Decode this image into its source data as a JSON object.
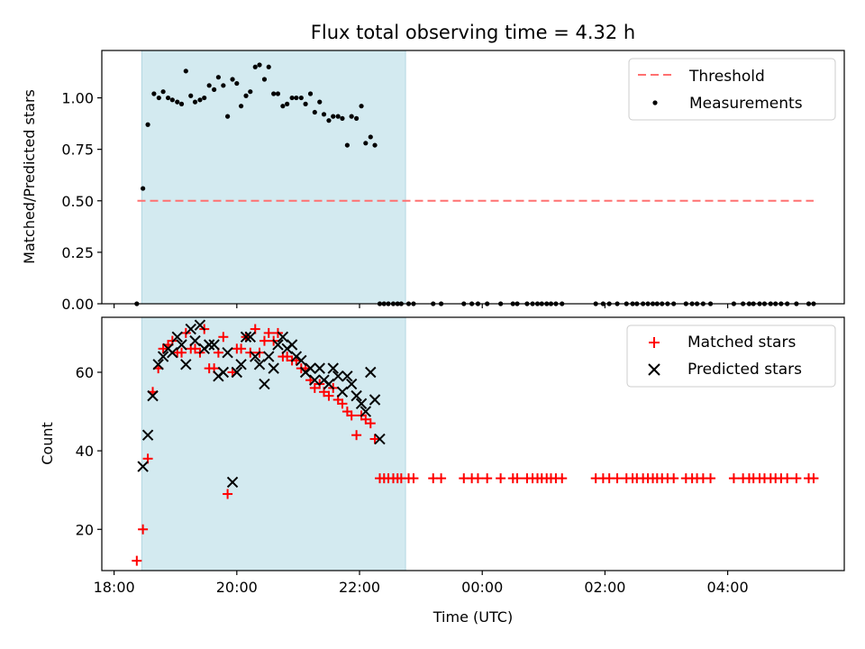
{
  "chart_data": [
    {
      "panel": "top",
      "type": "scatter",
      "title": "Flux total observing time = 4.32 h",
      "xlabel": "",
      "ylabel": "Matched/Predicted stars",
      "x_unit": "hours since 18:00 UTC",
      "xlim": [
        -0.2,
        11.9
      ],
      "ylim": [
        0,
        1.23
      ],
      "yticks": [
        0.0,
        0.25,
        0.5,
        0.75,
        1.0
      ],
      "ytick_labels": [
        "0.00",
        "0.25",
        "0.50",
        "0.75",
        "1.00"
      ],
      "shaded_interval": {
        "x_start": 0.45,
        "x_end": 4.75,
        "color": "#d3eaf0"
      },
      "threshold": {
        "name": "Threshold",
        "value": 0.5,
        "x_start": 0.38,
        "x_end": 11.4,
        "color": "#ff7070"
      },
      "legend": {
        "position": "top-right",
        "entries": [
          "Threshold",
          "Measurements"
        ]
      },
      "series": [
        {
          "name": "Measurements",
          "color": "#000000",
          "x": [
            0.37,
            0.47,
            0.55,
            0.65,
            0.73,
            0.8,
            0.88,
            0.95,
            1.03,
            1.1,
            1.17,
            1.25,
            1.32,
            1.4,
            1.47,
            1.55,
            1.63,
            1.7,
            1.78,
            1.85,
            1.93,
            2.0,
            2.07,
            2.15,
            2.22,
            2.3,
            2.37,
            2.45,
            2.52,
            2.6,
            2.67,
            2.75,
            2.82,
            2.9,
            2.97,
            3.05,
            3.12,
            3.2,
            3.27,
            3.35,
            3.42,
            3.5,
            3.57,
            3.65,
            3.72,
            3.8,
            3.87,
            3.95,
            4.03,
            4.1,
            4.18,
            4.25,
            4.33,
            4.4,
            4.47,
            4.55,
            4.62,
            4.68,
            4.8,
            4.88,
            5.2,
            5.33,
            5.7,
            5.83,
            5.93,
            6.08,
            6.3,
            6.5,
            6.57,
            6.73,
            6.82,
            6.9,
            6.97,
            7.05,
            7.12,
            7.2,
            7.3,
            7.85,
            7.97,
            8.07,
            8.2,
            8.35,
            8.45,
            8.52,
            8.62,
            8.7,
            8.78,
            8.85,
            8.93,
            9.02,
            9.12,
            9.32,
            9.42,
            9.5,
            9.6,
            9.72,
            10.1,
            10.25,
            10.35,
            10.42,
            10.52,
            10.6,
            10.7,
            10.78,
            10.87,
            10.97,
            11.12,
            11.32,
            11.4
          ],
          "y": [
            0.0,
            0.56,
            0.87,
            1.02,
            1.0,
            1.03,
            1.0,
            0.99,
            0.98,
            0.97,
            1.13,
            1.01,
            0.98,
            0.99,
            1.0,
            1.06,
            1.04,
            1.1,
            1.06,
            0.91,
            1.09,
            1.07,
            0.96,
            1.01,
            1.03,
            1.15,
            1.16,
            1.09,
            1.15,
            1.02,
            1.02,
            0.96,
            0.97,
            1.0,
            1.0,
            1.0,
            0.97,
            1.02,
            0.93,
            0.98,
            0.92,
            0.89,
            0.91,
            0.91,
            0.9,
            0.77,
            0.91,
            0.9,
            0.96,
            0.78,
            0.81,
            0.77,
            0.0,
            0.0,
            0.0,
            0.0,
            0.0,
            0.0,
            0.0,
            0.0,
            0.0,
            0.0,
            0.0,
            0.0,
            0.0,
            0.0,
            0.0,
            0.0,
            0.0,
            0.0,
            0.0,
            0.0,
            0.0,
            0.0,
            0.0,
            0.0,
            0.0,
            0.0,
            0.0,
            0.0,
            0.0,
            0.0,
            0.0,
            0.0,
            0.0,
            0.0,
            0.0,
            0.0,
            0.0,
            0.0,
            0.0,
            0.0,
            0.0,
            0.0,
            0.0,
            0.0,
            0.0,
            0.0,
            0.0,
            0.0,
            0.0,
            0.0,
            0.0,
            0.0,
            0.0,
            0.0,
            0.0,
            0.0,
            0.0
          ]
        }
      ]
    },
    {
      "panel": "bottom",
      "type": "scatter",
      "title": "",
      "xlabel": "Time (UTC)",
      "ylabel": "Count",
      "x_unit": "hours since 18:00 UTC",
      "xlim": [
        -0.2,
        11.9
      ],
      "ylim": [
        9.5,
        74
      ],
      "yticks": [
        20,
        40,
        60
      ],
      "ytick_labels": [
        "20",
        "40",
        "60"
      ],
      "xticks": [
        0,
        2,
        4,
        6,
        8,
        10
      ],
      "xtick_labels": [
        "18:00",
        "20:00",
        "22:00",
        "00:00",
        "02:00",
        "04:00"
      ],
      "shaded_interval": {
        "x_start": 0.45,
        "x_end": 4.75,
        "color": "#d3eaf0"
      },
      "legend": {
        "position": "top-right",
        "entries": [
          "Matched stars",
          "Predicted stars"
        ]
      },
      "series": [
        {
          "name": "Matched stars",
          "marker": "plus",
          "color": "#ff0000",
          "x": [
            0.37,
            0.47,
            0.55,
            0.63,
            0.72,
            0.8,
            0.88,
            0.95,
            1.03,
            1.1,
            1.17,
            1.25,
            1.32,
            1.4,
            1.47,
            1.55,
            1.63,
            1.7,
            1.78,
            1.85,
            1.93,
            2.0,
            2.07,
            2.15,
            2.22,
            2.3,
            2.37,
            2.45,
            2.52,
            2.6,
            2.67,
            2.75,
            2.82,
            2.9,
            2.97,
            3.05,
            3.12,
            3.2,
            3.27,
            3.35,
            3.42,
            3.5,
            3.57,
            3.65,
            3.72,
            3.8,
            3.87,
            3.95,
            4.03,
            4.1,
            4.18,
            4.25,
            4.33,
            4.4,
            4.47,
            4.55,
            4.62,
            4.68,
            4.8,
            4.88,
            5.2,
            5.33,
            5.7,
            5.83,
            5.93,
            6.08,
            6.3,
            6.5,
            6.57,
            6.73,
            6.82,
            6.9,
            6.97,
            7.05,
            7.12,
            7.2,
            7.3,
            7.85,
            7.97,
            8.07,
            8.2,
            8.35,
            8.45,
            8.52,
            8.62,
            8.7,
            8.78,
            8.85,
            8.93,
            9.02,
            9.12,
            9.32,
            9.42,
            9.5,
            9.6,
            9.72,
            10.1,
            10.25,
            10.35,
            10.42,
            10.52,
            10.6,
            10.7,
            10.78,
            10.87,
            10.97,
            11.12,
            11.32,
            11.4
          ],
          "y": [
            12,
            20,
            38,
            55,
            61,
            66,
            67,
            68,
            65,
            65,
            70,
            66,
            66,
            65,
            71,
            61,
            61,
            65,
            69,
            29,
            60,
            66,
            66,
            69,
            65,
            71,
            65,
            68,
            70,
            68,
            70,
            64,
            64,
            63,
            63,
            61,
            61,
            58,
            56,
            57,
            55,
            54,
            56,
            53,
            52,
            50,
            49,
            44,
            49,
            48,
            47,
            43,
            33,
            33,
            33,
            33,
            33,
            33,
            33,
            33,
            33,
            33,
            33,
            33,
            33,
            33,
            33,
            33,
            33,
            33,
            33,
            33,
            33,
            33,
            33,
            33,
            33,
            33,
            33,
            33,
            33,
            33,
            33,
            33,
            33,
            33,
            33,
            33,
            33,
            33,
            33,
            33,
            33,
            33,
            33,
            33,
            33,
            33,
            33,
            33,
            33,
            33,
            33,
            33,
            33,
            33,
            33,
            33,
            33
          ]
        },
        {
          "name": "Predicted stars",
          "marker": "x",
          "color": "#000000",
          "x": [
            0.47,
            0.55,
            0.63,
            0.72,
            0.8,
            0.88,
            0.95,
            1.03,
            1.1,
            1.17,
            1.25,
            1.32,
            1.4,
            1.47,
            1.55,
            1.63,
            1.7,
            1.78,
            1.85,
            1.93,
            2.0,
            2.07,
            2.15,
            2.22,
            2.3,
            2.37,
            2.45,
            2.52,
            2.6,
            2.67,
            2.75,
            2.82,
            2.9,
            2.97,
            3.05,
            3.12,
            3.2,
            3.27,
            3.35,
            3.42,
            3.5,
            3.57,
            3.65,
            3.72,
            3.8,
            3.87,
            3.95,
            4.03,
            4.1,
            4.18,
            4.25,
            4.33
          ],
          "y": [
            36,
            44,
            54,
            62,
            64,
            66,
            65,
            69,
            67,
            62,
            71,
            68,
            72,
            66,
            67,
            67,
            59,
            60,
            65,
            32,
            60,
            62,
            69,
            69,
            64,
            62,
            57,
            64,
            61,
            67,
            69,
            66,
            67,
            64,
            63,
            60,
            61,
            58,
            61,
            58,
            57,
            61,
            59,
            55,
            59,
            57,
            54,
            52,
            50,
            60,
            53,
            43
          ]
        }
      ]
    }
  ]
}
